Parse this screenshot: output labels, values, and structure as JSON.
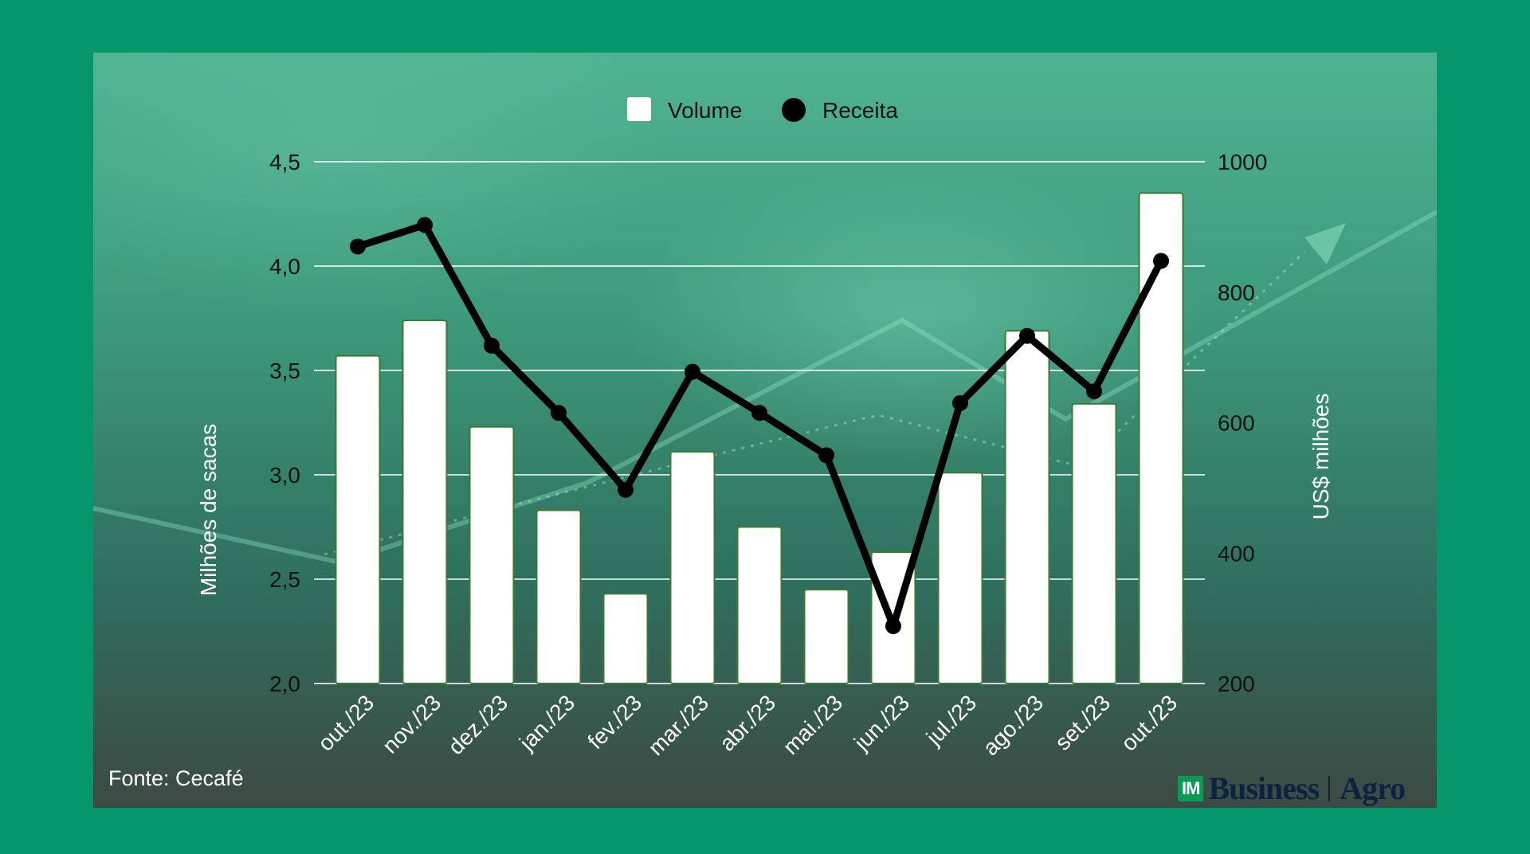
{
  "chart_data": {
    "type": "bar",
    "categories": [
      "out./23",
      "nov./23",
      "dez./23",
      "jan./23",
      "fev./23",
      "mar./23",
      "abr./23",
      "mai./23",
      "jun./23",
      "jul./23",
      "ago./23",
      "set./23",
      "out./23"
    ],
    "series": [
      {
        "name": "Volume",
        "type": "bar",
        "axis": "left",
        "color": "#ffffff",
        "values": [
          3.57,
          3.74,
          3.23,
          2.83,
          2.43,
          3.11,
          2.75,
          2.45,
          2.63,
          3.01,
          3.69,
          3.34,
          4.35
        ]
      },
      {
        "name": "Receita",
        "type": "line",
        "axis": "right",
        "color": "#000000",
        "values": [
          870,
          903,
          718,
          615,
          497,
          678,
          615,
          550,
          288,
          630,
          733,
          648,
          848
        ]
      }
    ],
    "ylabel_left": "Milhões de sacas",
    "ylabel_right": "US$ milhões",
    "ylim_left": [
      2.0,
      4.5
    ],
    "yticks_left": [
      "2,0",
      "2,5",
      "3,0",
      "3,5",
      "4,0",
      "4,5"
    ],
    "ylim_right": [
      200,
      1000
    ],
    "yticks_right": [
      "200",
      "400",
      "600",
      "800",
      "1000"
    ],
    "legend_position": "top-center",
    "grid": true
  },
  "source": "Fonte: Cecafé",
  "brand": {
    "im": "IM",
    "business": "Business",
    "agro": "Agro"
  }
}
